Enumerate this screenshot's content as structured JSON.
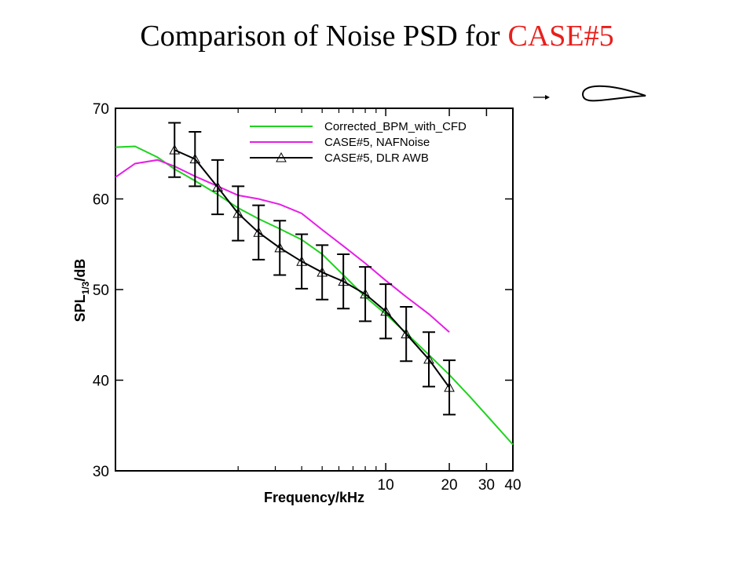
{
  "chart_data": {
    "type": "line",
    "title": [
      "Comparison of Noise PSD for",
      "CASE#5"
    ],
    "title_colors": [
      "#000000",
      "#e8201c"
    ],
    "xlabel": "Frequency/kHz",
    "ylabel": {
      "main": "SPL",
      "sub": "1/3",
      "unit": "/dB"
    },
    "xscale": "log",
    "xlim": [
      0.525,
      40
    ],
    "ylim": [
      30,
      70
    ],
    "xticks": [
      10,
      20,
      30,
      40
    ],
    "xminorticks": [
      2,
      3,
      4,
      5,
      6,
      7,
      8,
      9
    ],
    "yticks": [
      30,
      40,
      50,
      60,
      70
    ],
    "series": [
      {
        "name": "Corrected_BPM_with_CFD",
        "color": "#1fd21f",
        "x": [
          0.525,
          0.65,
          0.83,
          1.0,
          1.25,
          1.6,
          2,
          2.5,
          3.15,
          4,
          5,
          6.3,
          8,
          10,
          12.5,
          16,
          20,
          25,
          31.5,
          40
        ],
        "values": [
          65.7,
          65.8,
          64.6,
          63.3,
          62.0,
          60.5,
          59.0,
          57.8,
          56.7,
          55.5,
          53.9,
          51.6,
          49.2,
          47.3,
          45.2,
          42.8,
          40.6,
          38.2,
          35.6,
          32.9
        ]
      },
      {
        "name": "CASE#5, NAFNoise",
        "color": "#e61ee6",
        "x": [
          0.525,
          0.65,
          0.83,
          1.0,
          1.25,
          1.6,
          2,
          2.5,
          3.15,
          4,
          5,
          6.3,
          8,
          10,
          12.5,
          16,
          20
        ],
        "values": [
          62.4,
          63.9,
          64.3,
          63.6,
          62.5,
          61.4,
          60.4,
          60.0,
          59.4,
          58.4,
          56.6,
          54.8,
          52.9,
          51.0,
          49.2,
          47.3,
          45.3
        ]
      },
      {
        "name": "CASE#5, DLR AWB",
        "color": "#000000",
        "marker": "triangle",
        "x": [
          1.0,
          1.25,
          1.6,
          2,
          2.5,
          3.15,
          4,
          5,
          6.3,
          8,
          10,
          12.5,
          16,
          20
        ],
        "values": [
          65.4,
          64.4,
          61.3,
          58.4,
          56.3,
          54.6,
          53.1,
          51.9,
          50.9,
          49.5,
          47.6,
          45.1,
          42.3,
          39.2
        ],
        "errors": [
          3,
          3,
          3,
          3,
          3,
          3,
          3,
          3,
          3,
          3,
          3,
          3,
          3,
          3
        ]
      }
    ]
  }
}
